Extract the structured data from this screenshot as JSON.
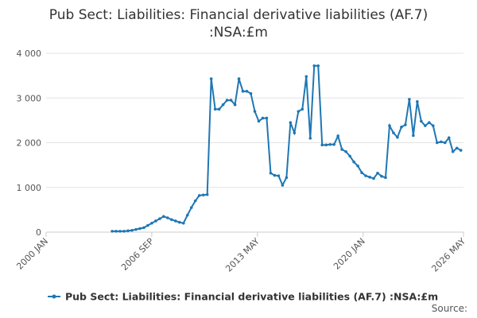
{
  "chart_data": {
    "type": "line",
    "title": "Pub Sect: Liabilities: Financial derivative liabilities (AF.7)",
    "subtitle": ":NSA:£m",
    "source": "Source:",
    "x": [
      "2004 MAR",
      "2004 JUN",
      "2004 SEP",
      "2004 DEC",
      "2005 MAR",
      "2005 JUN",
      "2005 SEP",
      "2005 DEC",
      "2006 MAR",
      "2006 JUN",
      "2006 SEP",
      "2006 DEC",
      "2007 MAR",
      "2007 JUN",
      "2007 SEP",
      "2007 DEC",
      "2008 MAR",
      "2008 JUN",
      "2008 SEP",
      "2008 DEC",
      "2009 MAR",
      "2009 JUN",
      "2009 SEP",
      "2009 DEC",
      "2010 MAR",
      "2010 JUN",
      "2010 SEP",
      "2010 DEC",
      "2011 MAR",
      "2011 JUN",
      "2011 SEP",
      "2011 DEC",
      "2012 MAR",
      "2012 JUN",
      "2012 SEP",
      "2012 DEC",
      "2013 MAR",
      "2013 JUN",
      "2013 SEP",
      "2013 DEC",
      "2014 MAR",
      "2014 JUN",
      "2014 SEP",
      "2014 DEC",
      "2015 MAR",
      "2015 JUN",
      "2015 SEP",
      "2015 DEC",
      "2016 MAR",
      "2016 JUN",
      "2016 SEP",
      "2016 DEC",
      "2017 MAR",
      "2017 JUN",
      "2017 SEP",
      "2017 DEC",
      "2018 MAR",
      "2018 JUN",
      "2018 SEP",
      "2018 DEC",
      "2019 MAR",
      "2019 JUN",
      "2019 SEP",
      "2019 DEC",
      "2020 MAR",
      "2020 JUN",
      "2020 SEP",
      "2020 DEC",
      "2021 MAR",
      "2021 JUN",
      "2021 SEP",
      "2021 DEC",
      "2022 MAR",
      "2022 JUN",
      "2022 SEP",
      "2022 DEC",
      "2023 MAR",
      "2023 JUN",
      "2023 SEP",
      "2023 DEC",
      "2024 MAR",
      "2024 JUN",
      "2024 SEP",
      "2024 DEC",
      "2025 MAR",
      "2025 JUN",
      "2025 SEP",
      "2025 DEC",
      "2026 MAR"
    ],
    "series": [
      {
        "name": "Pub Sect: Liabilities: Financial derivative liabilities (AF.7) :NSA:£m",
        "color": "#1f77b4",
        "values": [
          20,
          20,
          20,
          20,
          30,
          40,
          60,
          80,
          100,
          150,
          200,
          250,
          300,
          350,
          320,
          280,
          250,
          220,
          200,
          380,
          550,
          700,
          820,
          830,
          840,
          3430,
          2750,
          2750,
          2850,
          2950,
          2950,
          2850,
          3430,
          3150,
          3150,
          3100,
          2700,
          2480,
          2550,
          2550,
          1320,
          1270,
          1260,
          1050,
          1220,
          2450,
          2220,
          2700,
          2750,
          3480,
          2100,
          3720,
          3720,
          1950,
          1950,
          1960,
          1960,
          2150,
          1850,
          1800,
          1700,
          1570,
          1480,
          1330,
          1260,
          1230,
          1200,
          1320,
          1250,
          1220,
          2380,
          2220,
          2120,
          2350,
          2400,
          2970,
          2160,
          2920,
          2480,
          2380,
          2450,
          2380,
          2000,
          2020,
          2000,
          2110,
          1800,
          1880,
          1830
        ]
      }
    ],
    "xlim": [
      "2000 JAN",
      "2026 MAY"
    ],
    "xticks": [
      "2000 JAN",
      "2006 SEP",
      "2013 MAY",
      "2020 JAN",
      "2026 MAY"
    ],
    "ylim": [
      0,
      4000
    ],
    "yticks": [
      {
        "value": 0,
        "label": "0"
      },
      {
        "value": 1000,
        "label": "1 000"
      },
      {
        "value": 2000,
        "label": "2 000"
      },
      {
        "value": 3000,
        "label": "3 000"
      },
      {
        "value": 4000,
        "label": "4 000"
      }
    ],
    "grid": true
  }
}
